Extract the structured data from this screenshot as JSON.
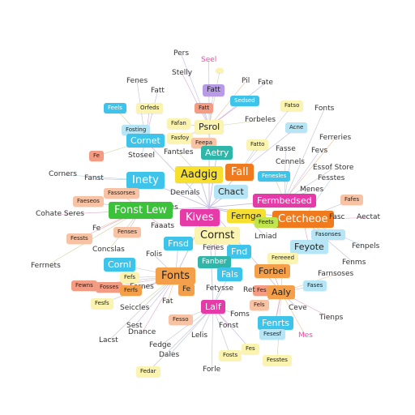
{
  "palette": {
    "yellow": "#f6df2e",
    "lightyellow": "#fbf3b0",
    "orange": "#f4a04a",
    "deeporange": "#f07a1e",
    "peach": "#f8c3a4",
    "salmon": "#f39c83",
    "pink": "#ec4fa3",
    "magenta": "#e63aa8",
    "purple": "#b89be6",
    "cyan": "#3ec3ea",
    "lightcyan": "#b6e6f6",
    "teal": "#2fb6a8",
    "green": "#3cc13b",
    "lime": "#bfe44e",
    "edge": "#bfc3cf"
  },
  "nodes": [
    {
      "id": "pers",
      "label": "Pers",
      "style": "plain",
      "color": "none"
    },
    {
      "id": "seel",
      "label": "Seel",
      "style": "plain",
      "color": "pink"
    },
    {
      "id": "stelly",
      "label": "Stelly",
      "style": "plain",
      "color": "none"
    },
    {
      "id": "y1",
      "label": "",
      "style": "boxed",
      "color": "lightyellow"
    },
    {
      "id": "fenes",
      "label": "Fenes",
      "style": "plain",
      "color": "none"
    },
    {
      "id": "fatt",
      "label": "Fatt",
      "style": "plain",
      "color": "none"
    },
    {
      "id": "purp1",
      "label": "Fatt",
      "style": "boxed",
      "color": "purple"
    },
    {
      "id": "pil",
      "label": "Pil",
      "style": "plain",
      "color": "none"
    },
    {
      "id": "fate",
      "label": "Fate",
      "style": "plain",
      "color": "none"
    },
    {
      "id": "c1",
      "label": "Feels",
      "style": "boxed",
      "color": "cyan"
    },
    {
      "id": "orfeds",
      "label": "Orfeds",
      "style": "boxed",
      "color": "lightyellow"
    },
    {
      "id": "fatt2",
      "label": "Fatt",
      "style": "boxed",
      "color": "salmon"
    },
    {
      "id": "sedsed",
      "label": "Sedsed",
      "style": "boxed",
      "color": "cyan"
    },
    {
      "id": "fatso",
      "label": "Fatso",
      "style": "boxed",
      "color": "lightyellow"
    },
    {
      "id": "fonts",
      "label": "Fonts",
      "style": "plain",
      "color": "none"
    },
    {
      "id": "psrol",
      "label": "Psrol",
      "style": "boxed",
      "color": "lightyellow"
    },
    {
      "id": "forbeles",
      "label": "Forbeles",
      "style": "plain",
      "color": "none"
    },
    {
      "id": "acne",
      "label": "Acne",
      "style": "boxed",
      "color": "lightcyan"
    },
    {
      "id": "fosting",
      "label": "Fosting",
      "style": "boxed",
      "color": "lightcyan"
    },
    {
      "id": "fafan",
      "label": "Fafan",
      "style": "boxed",
      "color": "lightyellow"
    },
    {
      "id": "fasfoy",
      "label": "Fasfoy",
      "style": "boxed",
      "color": "lightyellow"
    },
    {
      "id": "cornet",
      "label": "Cornet",
      "style": "boxed",
      "color": "cyan"
    },
    {
      "id": "feepa",
      "label": "Feepa",
      "style": "boxed",
      "color": "peach"
    },
    {
      "id": "aetry",
      "label": "Aetry",
      "style": "boxed",
      "color": "teal"
    },
    {
      "id": "fatto",
      "label": "Fatto",
      "style": "boxed",
      "color": "lightyellow"
    },
    {
      "id": "ferreries",
      "label": "Ferreries",
      "style": "plain",
      "color": "none"
    },
    {
      "id": "fasse",
      "label": "Fasse",
      "style": "plain",
      "color": "none"
    },
    {
      "id": "fevs",
      "label": "Fevs",
      "style": "plain",
      "color": "none"
    },
    {
      "id": "f1",
      "label": "Fe",
      "style": "boxed",
      "color": "salmon"
    },
    {
      "id": "stoseel",
      "label": "Stoseel",
      "style": "plain",
      "color": "none"
    },
    {
      "id": "fantsles",
      "label": "Fantsles",
      "style": "plain",
      "color": "none"
    },
    {
      "id": "essof",
      "label": "Essof Store",
      "style": "plain",
      "color": "none"
    },
    {
      "id": "aadgig",
      "label": "Aadgig",
      "style": "boxed",
      "color": "yellow"
    },
    {
      "id": "fall",
      "label": "Fall",
      "style": "boxed",
      "color": "deeporange"
    },
    {
      "id": "fenesles",
      "label": "Fenesles",
      "style": "boxed",
      "color": "cyan"
    },
    {
      "id": "cennels",
      "label": "Cennels",
      "style": "plain",
      "color": "none"
    },
    {
      "id": "corners",
      "label": "Corners",
      "style": "plain",
      "color": "none"
    },
    {
      "id": "fanst",
      "label": "Fanst",
      "style": "plain",
      "color": "none"
    },
    {
      "id": "inety",
      "label": "Inety",
      "style": "boxed",
      "color": "cyan"
    },
    {
      "id": "fesstes",
      "label": "Fesstes",
      "style": "plain",
      "color": "none"
    },
    {
      "id": "fassorses",
      "label": "Fassorses",
      "style": "boxed",
      "color": "peach"
    },
    {
      "id": "deenals",
      "label": "Deenals",
      "style": "plain",
      "color": "none"
    },
    {
      "id": "chact",
      "label": "Chact",
      "style": "boxed",
      "color": "lightcyan"
    },
    {
      "id": "fermbedsed",
      "label": "Fermbedsed",
      "style": "boxed",
      "color": "magenta"
    },
    {
      "id": "menes",
      "label": "Menes",
      "style": "plain",
      "color": "none"
    },
    {
      "id": "faeseos",
      "label": "Faeseos",
      "style": "boxed",
      "color": "peach"
    },
    {
      "id": "fafes",
      "label": "Fafes",
      "style": "boxed",
      "color": "peach"
    },
    {
      "id": "cenes",
      "label": "Cenes",
      "style": "plain",
      "color": "none"
    },
    {
      "id": "cohate",
      "label": "Cohate Seres",
      "style": "plain",
      "color": "none"
    },
    {
      "id": "fonst",
      "label": "Fonst Lew",
      "style": "boxed",
      "color": "green"
    },
    {
      "id": "kives",
      "label": "Kives",
      "style": "boxed",
      "color": "magenta"
    },
    {
      "id": "fernge",
      "label": "Fernge",
      "style": "boxed",
      "color": "yellow"
    },
    {
      "id": "cetcheoe",
      "label": "Cetcheoe",
      "style": "boxed",
      "color": "deeporange"
    },
    {
      "id": "aectat",
      "label": "Aectat",
      "style": "plain",
      "color": "none"
    },
    {
      "id": "fasc",
      "label": "Fasc",
      "style": "plain",
      "color": "none"
    },
    {
      "id": "faaats",
      "label": "Faaats",
      "style": "plain",
      "color": "none"
    },
    {
      "id": "feets",
      "label": "Feets",
      "style": "boxed",
      "color": "lime"
    },
    {
      "id": "fe2",
      "label": "Fe",
      "style": "plain",
      "color": "none"
    },
    {
      "id": "fessts",
      "label": "Fessts",
      "style": "boxed",
      "color": "peach"
    },
    {
      "id": "fenses",
      "label": "Fenses",
      "style": "boxed",
      "color": "peach"
    },
    {
      "id": "lmiad",
      "label": "Lmiad",
      "style": "plain",
      "color": "none"
    },
    {
      "id": "fasonses",
      "label": "Fasonses",
      "style": "boxed",
      "color": "lightcyan"
    },
    {
      "id": "cornst",
      "label": "Cornst",
      "style": "boxed",
      "color": "lightyellow"
    },
    {
      "id": "fnsd",
      "label": "Fnsd",
      "style": "boxed",
      "color": "cyan"
    },
    {
      "id": "fenpels",
      "label": "Fenpels",
      "style": "plain",
      "color": "none"
    },
    {
      "id": "concslas",
      "label": "Concslas",
      "style": "plain",
      "color": "none"
    },
    {
      "id": "fenes2",
      "label": "Fenes",
      "style": "plain",
      "color": "none"
    },
    {
      "id": "folis",
      "label": "Folis",
      "style": "plain",
      "color": "none"
    },
    {
      "id": "fnd",
      "label": "Fnd",
      "style": "boxed",
      "color": "cyan"
    },
    {
      "id": "feyote",
      "label": "Feyote",
      "style": "boxed",
      "color": "lightcyan"
    },
    {
      "id": "fereeed",
      "label": "Fereeed",
      "style": "boxed",
      "color": "lightyellow"
    },
    {
      "id": "fenms",
      "label": "Fenms",
      "style": "plain",
      "color": "none"
    },
    {
      "id": "cornl",
      "label": "Cornl",
      "style": "boxed",
      "color": "cyan"
    },
    {
      "id": "fanber",
      "label": "Fanber",
      "style": "boxed",
      "color": "teal"
    },
    {
      "id": "fals",
      "label": "Fals",
      "style": "boxed",
      "color": "cyan"
    },
    {
      "id": "forbel",
      "label": "Forbel",
      "style": "boxed",
      "color": "orange"
    },
    {
      "id": "farnsoses",
      "label": "Farnsoses",
      "style": "plain",
      "color": "none"
    },
    {
      "id": "ferrnets",
      "label": "Ferrnets",
      "style": "plain",
      "color": "none"
    },
    {
      "id": "fewns",
      "label": "Fewns",
      "style": "boxed",
      "color": "salmon"
    },
    {
      "id": "fonts2",
      "label": "Fonts",
      "style": "boxed",
      "color": "orange"
    },
    {
      "id": "fases",
      "label": "Fases",
      "style": "boxed",
      "color": "lightcyan"
    },
    {
      "id": "fornes",
      "label": "Fornes",
      "style": "plain",
      "color": "none"
    },
    {
      "id": "fosses",
      "label": "Fosses",
      "style": "boxed",
      "color": "salmon"
    },
    {
      "id": "fe3",
      "label": "Fe",
      "style": "boxed",
      "color": "orange"
    },
    {
      "id": "fes",
      "label": "Fes",
      "style": "boxed",
      "color": "salmon"
    },
    {
      "id": "fefs",
      "label": "Fefs",
      "style": "boxed",
      "color": "lightyellow"
    },
    {
      "id": "fesfs",
      "label": "Fesfs",
      "style": "boxed",
      "color": "lightyellow"
    },
    {
      "id": "ferfs",
      "label": "Ferfs",
      "style": "boxed",
      "color": "orange"
    },
    {
      "id": "fetysse",
      "label": "Fetysse",
      "style": "plain",
      "color": "none"
    },
    {
      "id": "ret",
      "label": "Ret",
      "style": "plain",
      "color": "none"
    },
    {
      "id": "aaly",
      "label": "Aaly",
      "style": "boxed",
      "color": "orange"
    },
    {
      "id": "lalf",
      "label": "Lalf",
      "style": "boxed",
      "color": "magenta"
    },
    {
      "id": "fat",
      "label": "Fat",
      "style": "plain",
      "color": "none"
    },
    {
      "id": "fels",
      "label": "Fels",
      "style": "boxed",
      "color": "peach"
    },
    {
      "id": "ceve",
      "label": "Ceve",
      "style": "plain",
      "color": "none"
    },
    {
      "id": "seiccles",
      "label": "Seiccles",
      "style": "plain",
      "color": "none"
    },
    {
      "id": "foms",
      "label": "Foms",
      "style": "plain",
      "color": "none"
    },
    {
      "id": "fenrts",
      "label": "Fenrts",
      "style": "boxed",
      "color": "cyan"
    },
    {
      "id": "tienps",
      "label": "Tienps",
      "style": "plain",
      "color": "none"
    },
    {
      "id": "fesso",
      "label": "Fesso",
      "style": "boxed",
      "color": "peach"
    },
    {
      "id": "sest",
      "label": "Sest",
      "style": "plain",
      "color": "none"
    },
    {
      "id": "dnance",
      "label": "Dnance",
      "style": "plain",
      "color": "none"
    },
    {
      "id": "lelis",
      "label": "Lelis",
      "style": "plain",
      "color": "none"
    },
    {
      "id": "fonst2",
      "label": "Fonst",
      "style": "plain",
      "color": "none"
    },
    {
      "id": "fesesf",
      "label": "Fesesf",
      "style": "boxed",
      "color": "lightcyan"
    },
    {
      "id": "mes",
      "label": "Mes",
      "style": "plain",
      "color": "pink"
    },
    {
      "id": "lacst",
      "label": "Lacst",
      "style": "plain",
      "color": "none"
    },
    {
      "id": "fedge",
      "label": "Fedge",
      "style": "plain",
      "color": "none"
    },
    {
      "id": "fosts",
      "label": "Fosts",
      "style": "boxed",
      "color": "lightyellow"
    },
    {
      "id": "dales",
      "label": "Dales",
      "style": "plain",
      "color": "none"
    },
    {
      "id": "fes2",
      "label": "Fes",
      "style": "boxed",
      "color": "lightyellow"
    },
    {
      "id": "fesstes2",
      "label": "Fesstes",
      "style": "boxed",
      "color": "lightyellow"
    },
    {
      "id": "fedar",
      "label": "Fedar",
      "style": "boxed",
      "color": "lightyellow"
    },
    {
      "id": "forle",
      "label": "Forle",
      "style": "plain",
      "color": "none"
    }
  ]
}
